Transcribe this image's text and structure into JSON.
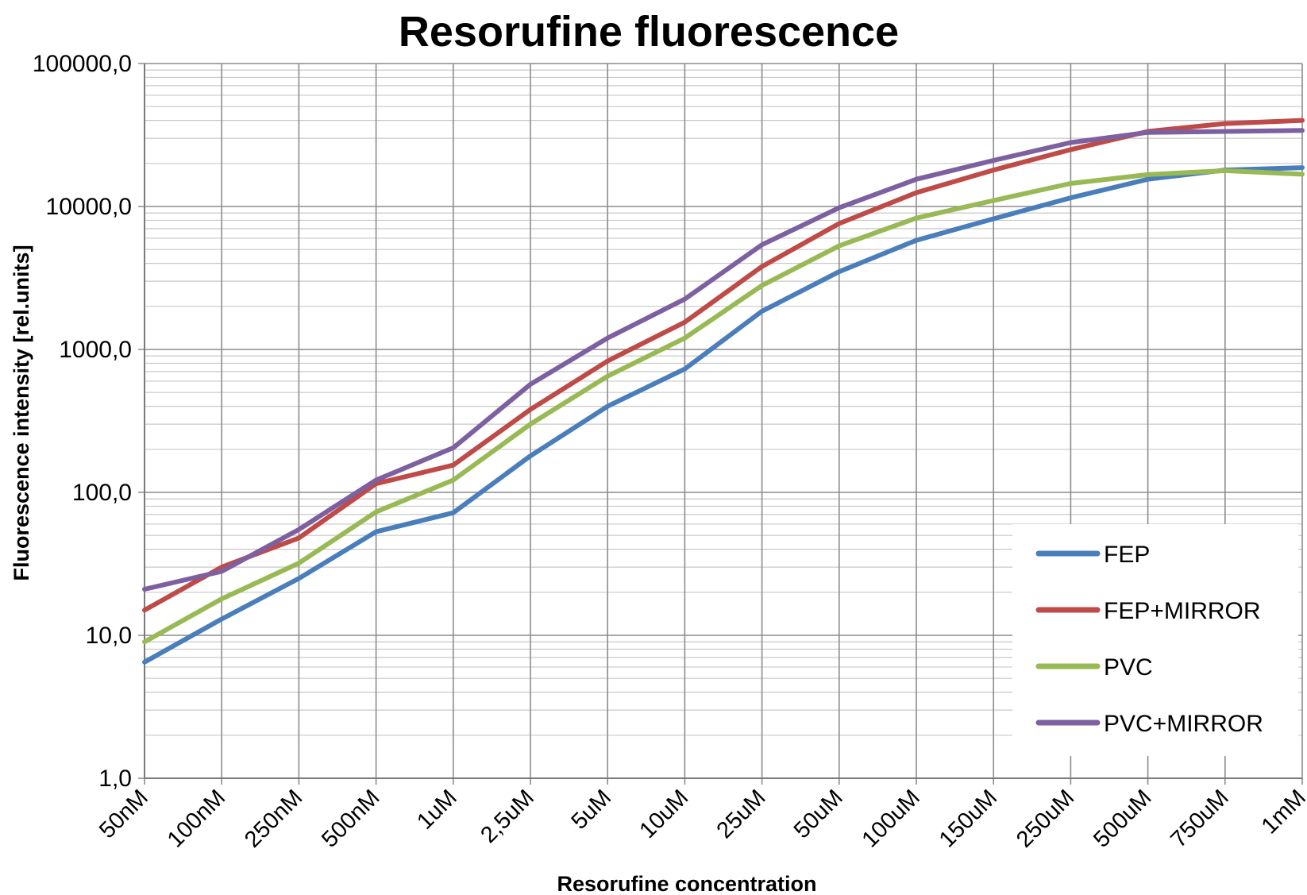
{
  "chart_data": {
    "type": "line",
    "title": "Resorufine fluorescence",
    "xlabel": "Resorufine concentration",
    "ylabel": "Fluorescence intensity [rel.units]",
    "yscale": "log",
    "ylim": [
      1,
      100000
    ],
    "ytick_labels": [
      "1,0",
      "10,0",
      "100,0",
      "1000,0",
      "10000,0",
      "100000,0"
    ],
    "ytick_values": [
      1,
      10,
      100,
      1000,
      10000,
      100000
    ],
    "grid": true,
    "legend_position": "bottom-right",
    "categories": [
      "50nM",
      "100nM",
      "250nM",
      "500nM",
      "1uM",
      "2,5uM",
      "5uM",
      "10uM",
      "25uM",
      "50uM",
      "100uM",
      "150uM",
      "250uM",
      "500uM",
      "750uM",
      "1mM"
    ],
    "series": [
      {
        "name": "FEP",
        "color": "#4a7ebb",
        "values": [
          6.5,
          13,
          25,
          53,
          72,
          180,
          400,
          730,
          1850,
          3500,
          5800,
          8200,
          11500,
          15500,
          18000,
          18700
        ]
      },
      {
        "name": "FEP+MIRROR",
        "color": "#be4b48",
        "values": [
          15,
          30,
          48,
          115,
          155,
          380,
          830,
          1550,
          3800,
          7600,
          12500,
          18000,
          25000,
          33500,
          38000,
          40000
        ]
      },
      {
        "name": "PVC",
        "color": "#98b954",
        "values": [
          9,
          18,
          32,
          73,
          122,
          300,
          650,
          1200,
          2800,
          5300,
          8300,
          11000,
          14500,
          16700,
          17800,
          16800
        ]
      },
      {
        "name": "PVC+MIRROR",
        "color": "#7d60a0",
        "values": [
          21,
          28,
          55,
          122,
          205,
          570,
          1200,
          2250,
          5400,
          9800,
          15500,
          21000,
          28000,
          33000,
          33500,
          34000
        ]
      }
    ]
  }
}
